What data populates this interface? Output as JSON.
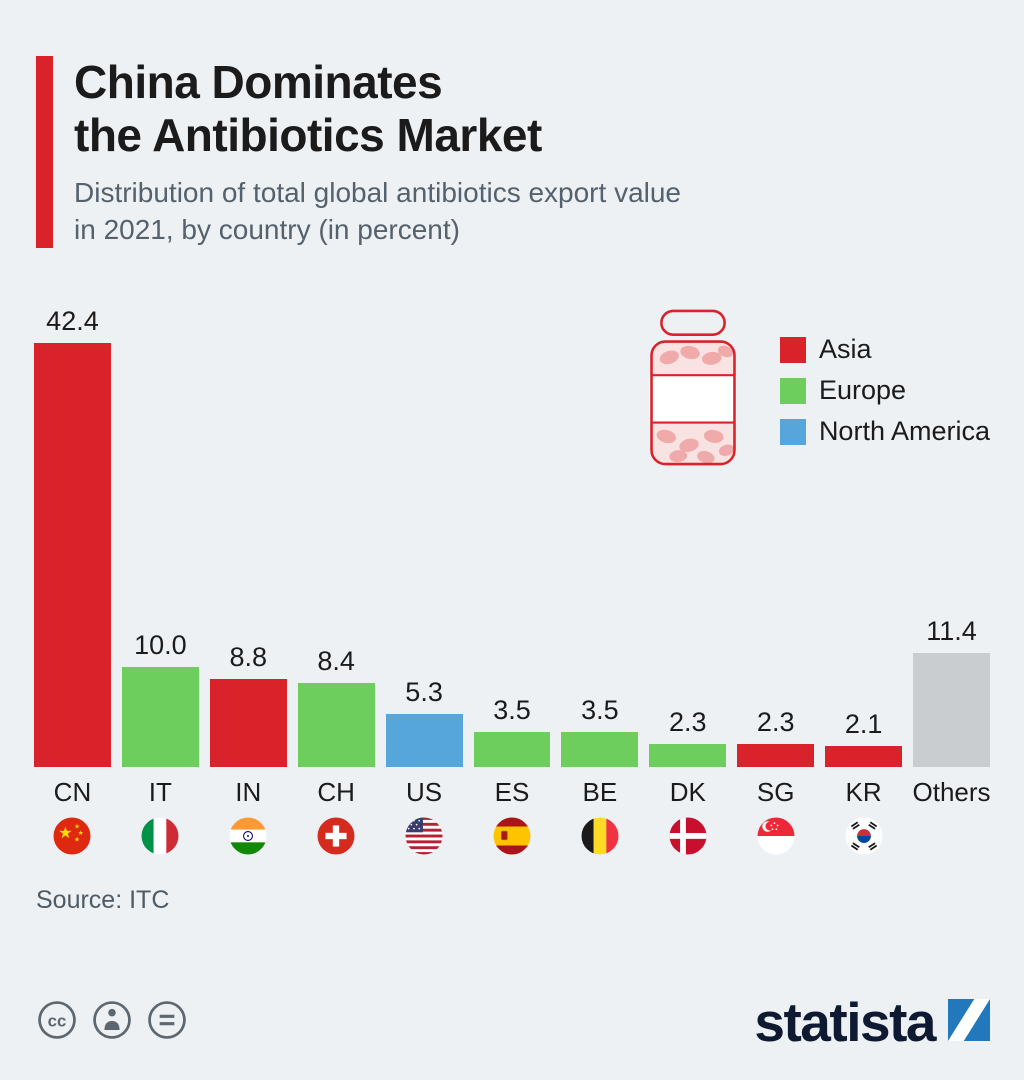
{
  "header": {
    "title_line1": "China Dominates",
    "title_line2": "the Antibiotics Market",
    "subtitle_line1": "Distribution of total global antibiotics export value",
    "subtitle_line2": "in 2021, by country (in percent)"
  },
  "legend": {
    "items": [
      {
        "label": "Asia",
        "color": "#d9222a"
      },
      {
        "label": "Europe",
        "color": "#6dcd5d"
      },
      {
        "label": "North America",
        "color": "#56a6db"
      }
    ]
  },
  "chart_data": {
    "type": "bar",
    "title": "China Dominates the Antibiotics Market",
    "subtitle": "Distribution of total global antibiotics export value in 2021, by country (in percent)",
    "categories": [
      "CN",
      "IT",
      "IN",
      "CH",
      "US",
      "ES",
      "BE",
      "DK",
      "SG",
      "KR",
      "Others"
    ],
    "values": [
      42.4,
      10.0,
      8.8,
      8.4,
      5.3,
      3.5,
      3.5,
      2.3,
      2.3,
      2.1,
      11.4
    ],
    "value_labels": [
      "42.4",
      "10.0",
      "8.8",
      "8.4",
      "5.3",
      "3.5",
      "3.5",
      "2.3",
      "2.3",
      "2.1",
      "11.4"
    ],
    "regions": [
      "Asia",
      "Europe",
      "Asia",
      "Europe",
      "North America",
      "Europe",
      "Europe",
      "Europe",
      "Asia",
      "Asia",
      "Others"
    ],
    "colors": {
      "Asia": "#d9222a",
      "Europe": "#6dcd5d",
      "North America": "#56a6db",
      "Others": "#cacdd0"
    },
    "flag_icons": [
      "china-flag-icon",
      "italy-flag-icon",
      "india-flag-icon",
      "switzerland-flag-icon",
      "united-states-flag-icon",
      "spain-flag-icon",
      "belgium-flag-icon",
      "denmark-flag-icon",
      "singapore-flag-icon",
      "south-korea-flag-icon",
      ""
    ],
    "unit": "percent",
    "ylim": [
      0,
      45
    ],
    "grid": false,
    "legend_position": "top-right"
  },
  "source": {
    "text": "Source: ITC"
  },
  "footer": {
    "brand": "statista"
  }
}
